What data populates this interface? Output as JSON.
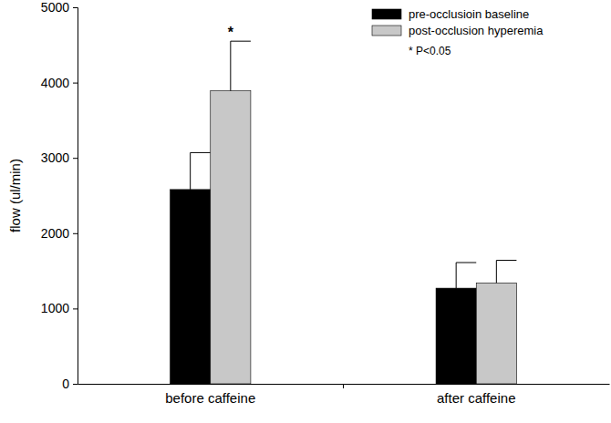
{
  "chart_data": {
    "type": "bar",
    "y_label": "flow (ul/min)",
    "categories": [
      "before caffeine",
      "after caffeine"
    ],
    "series": [
      {
        "name": "pre-occlusioin baseline",
        "color": "#000000",
        "values": [
          2580,
          1270
        ],
        "errors": [
          490,
          340
        ]
      },
      {
        "name": "post-occlusion hyperemia",
        "color": "#c8c8c8",
        "values": [
          3890,
          1340
        ],
        "errors": [
          660,
          300
        ],
        "significance": [
          "*",
          null
        ]
      }
    ],
    "annotations": [
      "* P<0.05"
    ],
    "ylim": [
      0,
      5000
    ],
    "yticks": [
      0,
      1000,
      2000,
      3000,
      4000,
      5000
    ],
    "legend": "upper-right"
  }
}
